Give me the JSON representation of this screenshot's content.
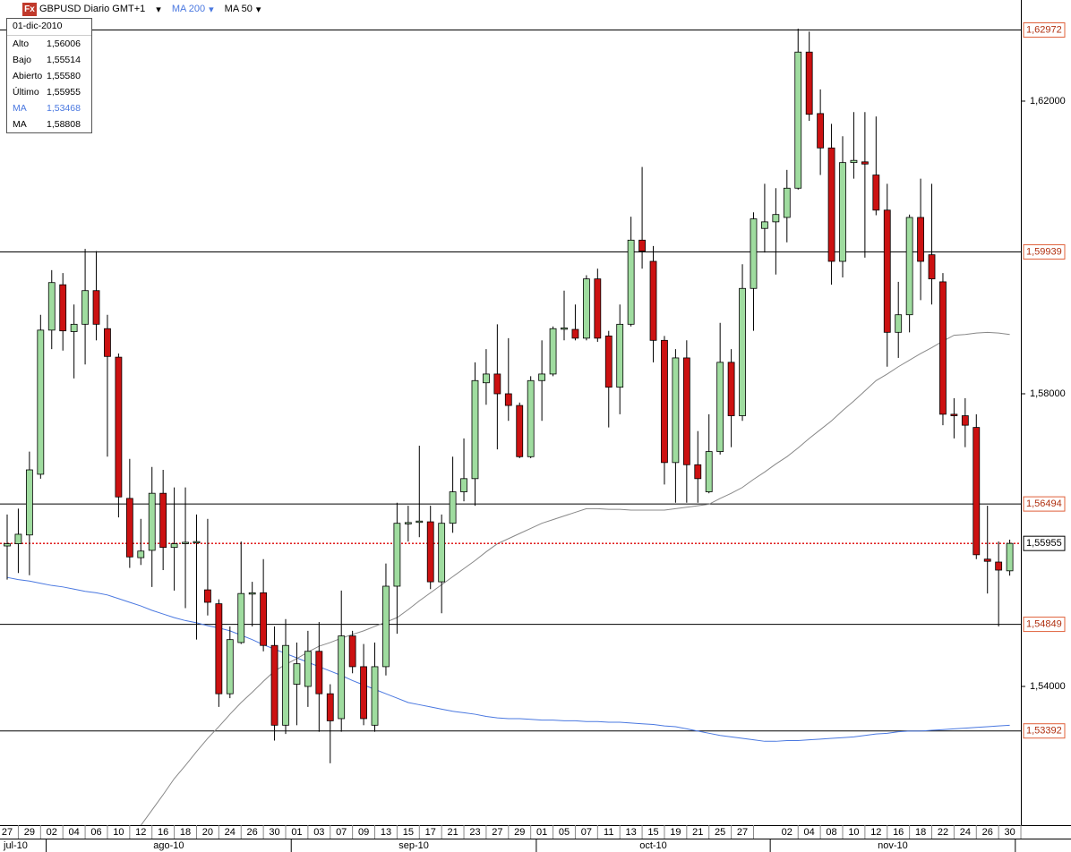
{
  "chart_data": {
    "type": "candlestick",
    "icon_label": "Fx",
    "title": "GBPUSD Diario GMT+1",
    "categories": [
      "27",
      null,
      "29",
      null,
      "02",
      null,
      "04",
      null,
      "06",
      null,
      "10",
      null,
      "12",
      null,
      "16",
      null,
      "18",
      null,
      "20",
      null,
      "24",
      null,
      "26",
      null,
      "30",
      null,
      "01",
      null,
      "03",
      null,
      "07",
      null,
      "09",
      null,
      "13",
      null,
      "15",
      null,
      "17",
      null,
      "21",
      null,
      "23",
      null,
      "27",
      null,
      "29",
      null,
      "01",
      null,
      "05",
      null,
      "07",
      null,
      "11",
      null,
      "13",
      null,
      "15",
      null,
      "19",
      null,
      "21",
      null,
      "25",
      null,
      "27",
      null,
      null,
      null,
      "02",
      null,
      "04",
      null,
      "08",
      null,
      "10",
      null,
      "12",
      null,
      "16",
      null,
      "18",
      null,
      "22",
      null,
      "24",
      null,
      "26",
      null,
      "30"
    ],
    "months": [
      "jul-10",
      "ago-10",
      "sep-10",
      "oct-10",
      "nov-10"
    ],
    "series": [
      {
        "name": "GBPUSD",
        "up_color": "#9fdc9f",
        "down_color": "#cc1111",
        "open": [
          1.5592,
          1.5595,
          1.5607,
          1.569,
          1.5887,
          1.5949,
          1.5885,
          1.5895,
          1.5941,
          1.5889,
          1.585,
          1.5657,
          1.5576,
          1.5586,
          1.5664,
          1.559,
          1.5596,
          1.5597,
          1.5532,
          1.5513,
          1.539,
          1.546,
          1.5527,
          1.5528,
          1.5456,
          1.5347,
          1.5403,
          1.54,
          1.5448,
          1.539,
          1.5356,
          1.5469,
          1.5427,
          1.5347,
          1.5427,
          1.5537,
          1.5623,
          1.5625,
          1.5625,
          1.5543,
          1.5623,
          1.5666,
          1.5684,
          1.5815,
          1.5827,
          1.58,
          1.5784,
          1.5714,
          1.5818,
          1.5827,
          1.5889,
          1.5888,
          1.5876,
          1.5957,
          1.5879,
          1.5809,
          1.5895,
          1.601,
          1.5981,
          1.5873,
          1.5706,
          1.5849,
          1.5703,
          1.5666,
          1.5721,
          1.5843,
          1.577,
          1.5944,
          1.6026,
          1.6035,
          1.6041,
          1.6081,
          1.6267,
          1.6183,
          1.6136,
          1.5981,
          1.6116,
          1.6117,
          1.6099,
          1.6051,
          1.5884,
          1.5908,
          1.6041,
          1.599,
          1.5953,
          1.5772,
          1.577,
          1.5754,
          1.5574,
          1.557,
          1.5558
        ],
        "high": [
          1.5635,
          1.5643,
          1.5721,
          1.5908,
          1.5969,
          1.5965,
          1.5922,
          1.5998,
          1.5995,
          1.5908,
          1.5855,
          1.5711,
          1.5629,
          1.57,
          1.5696,
          1.5672,
          1.5672,
          1.5635,
          1.5629,
          1.5519,
          1.5482,
          1.5598,
          1.5543,
          1.5574,
          1.5482,
          1.5492,
          1.546,
          1.5476,
          1.5488,
          1.5403,
          1.5531,
          1.5476,
          1.5458,
          1.546,
          1.5568,
          1.5651,
          1.5647,
          1.5729,
          1.5647,
          1.5635,
          1.5714,
          1.5739,
          1.5843,
          1.5861,
          1.5895,
          1.5876,
          1.5788,
          1.5824,
          1.5873,
          1.5892,
          1.5941,
          1.5922,
          1.5962,
          1.5971,
          1.5886,
          1.5922,
          1.6042,
          1.611,
          1.6002,
          1.5879,
          1.5861,
          1.5873,
          1.5749,
          1.5772,
          1.5897,
          1.5861,
          1.5977,
          1.6048,
          1.6087,
          1.6081,
          1.6106,
          1.6299,
          1.6295,
          1.6216,
          1.6169,
          1.6152,
          1.6185,
          1.6185,
          1.6179,
          1.6087,
          1.5953,
          1.6045,
          1.6094,
          1.6087,
          1.5965,
          1.5794,
          1.5794,
          1.5772,
          1.5647,
          1.5598,
          1.56006
        ],
        "low": [
          1.5546,
          1.5555,
          1.5552,
          1.5684,
          1.5861,
          1.5859,
          1.5821,
          1.584,
          1.5873,
          1.5714,
          1.5631,
          1.5562,
          1.5566,
          1.5536,
          1.5559,
          1.5531,
          1.5507,
          1.5464,
          1.5497,
          1.5372,
          1.5384,
          1.5458,
          1.5482,
          1.5448,
          1.5326,
          1.5335,
          1.5347,
          1.5372,
          1.5338,
          1.5295,
          1.5338,
          1.5418,
          1.5347,
          1.5338,
          1.5415,
          1.5472,
          1.5598,
          1.5604,
          1.5533,
          1.55,
          1.561,
          1.5653,
          1.5647,
          1.5785,
          1.5724,
          1.5763,
          1.5712,
          1.5712,
          1.5763,
          1.5824,
          1.5873,
          1.5873,
          1.5873,
          1.5871,
          1.5754,
          1.5772,
          1.5892,
          1.5971,
          1.5843,
          1.5676,
          1.5651,
          1.5651,
          1.5651,
          1.5664,
          1.5717,
          1.5727,
          1.5763,
          1.5886,
          1.5993,
          1.5963,
          1.6007,
          1.6079,
          1.6173,
          1.6099,
          1.5949,
          1.5959,
          1.6094,
          1.5986,
          1.6044,
          1.5837,
          1.5849,
          1.5884,
          1.5928,
          1.5922,
          1.5757,
          1.5739,
          1.5727,
          1.5574,
          1.5527,
          1.5482,
          1.55514
        ],
        "close": [
          1.5595,
          1.5608,
          1.5696,
          1.5887,
          1.5952,
          1.5886,
          1.5895,
          1.5941,
          1.5895,
          1.5851,
          1.5659,
          1.5577,
          1.5585,
          1.5664,
          1.559,
          1.5595,
          1.5597,
          1.5598,
          1.5515,
          1.539,
          1.5464,
          1.5527,
          1.5528,
          1.5456,
          1.5347,
          1.5456,
          1.5431,
          1.5448,
          1.539,
          1.5353,
          1.5469,
          1.5427,
          1.5356,
          1.5427,
          1.5537,
          1.5623,
          1.5624,
          1.5626,
          1.5543,
          1.5623,
          1.5666,
          1.5684,
          1.5818,
          1.5827,
          1.58,
          1.5784,
          1.5714,
          1.5818,
          1.5827,
          1.5889,
          1.589,
          1.5876,
          1.5957,
          1.5876,
          1.5809,
          1.5895,
          1.601,
          1.5995,
          1.5873,
          1.5706,
          1.5849,
          1.5703,
          1.5684,
          1.5721,
          1.5843,
          1.577,
          1.5944,
          1.6039,
          1.6035,
          1.6045,
          1.6081,
          1.6267,
          1.6182,
          1.6136,
          1.5981,
          1.6116,
          1.6119,
          1.6114,
          1.6051,
          1.5884,
          1.5908,
          1.6041,
          1.5981,
          1.5957,
          1.5772,
          1.577,
          1.5757,
          1.558,
          1.5571,
          1.5559,
          1.55955
        ]
      }
    ],
    "overlays": [
      {
        "name": "MA 200",
        "color": "#4a78e0",
        "values": [
          1.5549,
          1.5546,
          1.5544,
          1.5541,
          1.5538,
          1.5536,
          1.5533,
          1.553,
          1.5528,
          1.5525,
          1.552,
          1.5515,
          1.551,
          1.5504,
          1.5499,
          1.5494,
          1.549,
          1.5487,
          1.5483,
          1.548,
          1.5476,
          1.547,
          1.5464,
          1.5457,
          1.5451,
          1.5445,
          1.5439,
          1.5433,
          1.5427,
          1.5421,
          1.5415,
          1.5408,
          1.5402,
          1.5396,
          1.539,
          1.5384,
          1.5378,
          1.5375,
          1.5372,
          1.5369,
          1.5366,
          1.5364,
          1.5362,
          1.5359,
          1.5357,
          1.5356,
          1.5356,
          1.5355,
          1.5354,
          1.5354,
          1.5353,
          1.5353,
          1.5352,
          1.5352,
          1.5351,
          1.5351,
          1.535,
          1.5349,
          1.5348,
          1.5346,
          1.5345,
          1.5342,
          1.5339,
          1.5336,
          1.5333,
          1.5331,
          1.5329,
          1.5327,
          1.5325,
          1.5325,
          1.5326,
          1.5326,
          1.5327,
          1.5328,
          1.5329,
          1.533,
          1.5331,
          1.5333,
          1.5335,
          1.5336,
          1.5338,
          1.5339,
          1.5339,
          1.534,
          1.5341,
          1.5342,
          1.5343,
          1.5344,
          1.5345,
          1.5346,
          1.5347
        ]
      },
      {
        "name": "MA 50",
        "color": "#888888",
        "values": [
          null,
          null,
          null,
          null,
          null,
          null,
          null,
          null,
          null,
          null,
          null,
          null,
          1.521,
          1.5231,
          1.5252,
          1.5274,
          1.5292,
          1.5311,
          1.5329,
          1.5345,
          1.5362,
          1.5378,
          1.5392,
          1.5407,
          1.5421,
          1.543,
          1.5438,
          1.5447,
          1.5455,
          1.546,
          1.5466,
          1.5471,
          1.5476,
          1.5482,
          1.5488,
          1.5494,
          1.5505,
          1.5517,
          1.5528,
          1.5539,
          1.555,
          1.5561,
          1.5572,
          1.5584,
          1.5595,
          1.5602,
          1.5609,
          1.5616,
          1.5623,
          1.5628,
          1.5633,
          1.5638,
          1.5643,
          1.5643,
          1.5642,
          1.5642,
          1.5641,
          1.5641,
          1.5641,
          1.5641,
          1.5643,
          1.5645,
          1.5647,
          1.5649,
          1.5657,
          1.5664,
          1.5672,
          1.5683,
          1.5693,
          1.5704,
          1.5714,
          1.5726,
          1.5739,
          1.5751,
          1.5763,
          1.5777,
          1.579,
          1.5804,
          1.5818,
          1.5827,
          1.5837,
          1.5846,
          1.5855,
          1.5863,
          1.5872,
          1.588,
          1.5881,
          1.5883,
          1.5884,
          1.5883,
          1.5881
        ]
      }
    ],
    "levels": [
      {
        "value": 1.62972,
        "label": "1,62972"
      },
      {
        "value": 1.59939,
        "label": "1,59939"
      },
      {
        "value": 1.56494,
        "label": "1,56494"
      },
      {
        "value": 1.54849,
        "label": "1,54849"
      },
      {
        "value": 1.53392,
        "label": "1,53392"
      }
    ],
    "last": {
      "value": 1.55955,
      "label": "1,55955"
    },
    "ylim": [
      1.52104,
      1.63382
    ],
    "yticks": [
      {
        "value": 1.54,
        "label": "1,54000"
      },
      {
        "value": 1.58,
        "label": "1,58000"
      },
      {
        "value": 1.62,
        "label": "1,62000"
      }
    ],
    "info": {
      "date": "01-dic-2010",
      "rows": [
        {
          "label": "Alto",
          "value": "1,56006"
        },
        {
          "label": "Bajo",
          "value": "1,55514"
        },
        {
          "label": "Abierto",
          "value": "1,55580"
        },
        {
          "label": "Último",
          "value": "1,55955"
        },
        {
          "label": "MA",
          "value": "1,53468"
        },
        {
          "label": "MA",
          "value": "1,58808"
        }
      ]
    }
  }
}
